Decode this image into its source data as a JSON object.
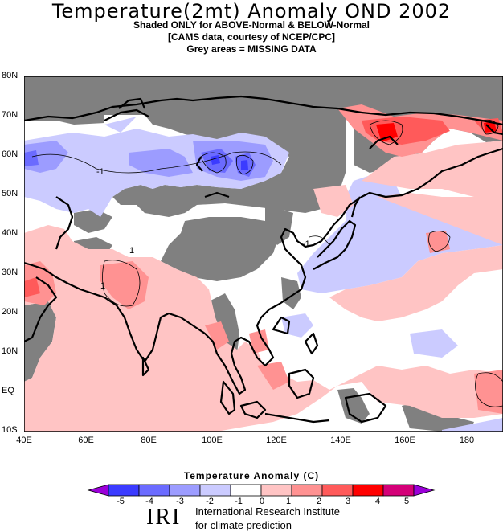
{
  "header": {
    "title": "Temperature(2mt) Anomaly OND 2002",
    "line1": "Shaded ONLY for ABOVE-Normal & BELOW-Normal",
    "line2": "[CAMS data, courtesy of NCEP/CPC]",
    "line3": "Grey areas = MISSING DATA"
  },
  "axes": {
    "lat_labels": [
      "80N",
      "70N",
      "60N",
      "50N",
      "40N",
      "30N",
      "20N",
      "10N",
      "EQ",
      "10S"
    ],
    "lon_labels": [
      "40E",
      "60E",
      "80E",
      "100E",
      "120E",
      "140E",
      "160E",
      "180"
    ]
  },
  "contour_labels": [
    "-1",
    "-1",
    "1",
    "1"
  ],
  "colorbar": {
    "title": "Temperature  Anomaly (C)",
    "ticks": [
      "-5",
      "-4",
      "-3",
      "-2",
      "-1",
      "0",
      "1",
      "2",
      "3",
      "4",
      "5"
    ],
    "colors": [
      "#9b00d9",
      "#3b3bff",
      "#6b6bff",
      "#9c9cff",
      "#cbcbff",
      "#ffffff",
      "#ffc4c4",
      "#ff9292",
      "#ff5a5a",
      "#ff0000",
      "#d40078",
      "#9b00d9"
    ]
  },
  "footer": {
    "logo": "IRI",
    "line1": "International Research Institute",
    "line2": "for climate prediction"
  },
  "colors": {
    "missing": "#808080",
    "above_1": "#ffc4c4",
    "above_2": "#ff9292",
    "above_3": "#ff5a5a",
    "above_4": "#ff0000",
    "below_1": "#cbcbff",
    "below_2": "#9c9cff",
    "below_3": "#6b6bff",
    "below_4": "#3b3bff"
  }
}
